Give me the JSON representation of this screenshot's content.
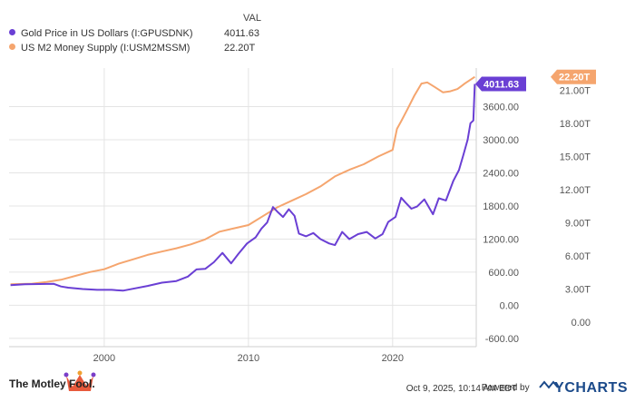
{
  "legend": {
    "value_header": "VAL",
    "items": [
      {
        "label": "Gold Price in US Dollars (I:GPUSDNK)",
        "value": "4011.63"
      },
      {
        "label": "US M2 Money Supply (I:USM2MSSM)",
        "value": "22.20T"
      }
    ]
  },
  "footer": {
    "brand": "The Motley Fool.",
    "timestamp": "Oct 9, 2025, 10:14 AM EDT",
    "powered_by": "Powered by",
    "provider": "YCHARTS"
  },
  "colors": {
    "gold": "#6a3fd4",
    "m2": "#f5a56e",
    "grid": "#e4e4e4",
    "axis_text": "#555555"
  },
  "chart_data": {
    "type": "line",
    "title": "",
    "xlabel": "",
    "ylabel": "",
    "x_ticks": [
      "2000",
      "2010",
      "2020"
    ],
    "xlim": [
      1993.4,
      2025.8
    ],
    "left_axis": {
      "ticks": [
        "-600.00",
        "0.00",
        "600.00",
        "1200.00",
        "1800.00",
        "2400.00",
        "3000.00",
        "3600.00"
      ],
      "ylim": [
        -750,
        4300
      ]
    },
    "right_axis": {
      "ticks": [
        "0.00",
        "3.00T",
        "6.00T",
        "9.00T",
        "12.00T",
        "15.00T",
        "18.00T",
        "21.00T"
      ],
      "ylim": [
        -2.2,
        23.0
      ]
    },
    "grid": true,
    "legend_position": "top-left",
    "series": [
      {
        "name": "Gold Price in US Dollars (I:GPUSDNK)",
        "axis": "left",
        "end_label": "4011.63",
        "points": [
          [
            1993.5,
            365
          ],
          [
            1994.5,
            380
          ],
          [
            1995.5,
            385
          ],
          [
            1996.5,
            388
          ],
          [
            1997.0,
            340
          ],
          [
            1997.5,
            320
          ],
          [
            1998.5,
            295
          ],
          [
            1999.5,
            280
          ],
          [
            2000.5,
            280
          ],
          [
            2001.3,
            265
          ],
          [
            2002.0,
            300
          ],
          [
            2003.0,
            350
          ],
          [
            2004.0,
            410
          ],
          [
            2005.0,
            440
          ],
          [
            2005.8,
            520
          ],
          [
            2006.4,
            650
          ],
          [
            2007.0,
            660
          ],
          [
            2007.6,
            780
          ],
          [
            2008.2,
            950
          ],
          [
            2008.8,
            760
          ],
          [
            2009.3,
            930
          ],
          [
            2009.9,
            1120
          ],
          [
            2010.5,
            1230
          ],
          [
            2010.9,
            1390
          ],
          [
            2011.3,
            1500
          ],
          [
            2011.7,
            1780
          ],
          [
            2012.0,
            1700
          ],
          [
            2012.4,
            1600
          ],
          [
            2012.8,
            1740
          ],
          [
            2013.2,
            1620
          ],
          [
            2013.5,
            1300
          ],
          [
            2014.0,
            1250
          ],
          [
            2014.5,
            1310
          ],
          [
            2015.0,
            1200
          ],
          [
            2015.6,
            1120
          ],
          [
            2016.0,
            1090
          ],
          [
            2016.5,
            1330
          ],
          [
            2017.0,
            1200
          ],
          [
            2017.6,
            1290
          ],
          [
            2018.2,
            1330
          ],
          [
            2018.8,
            1210
          ],
          [
            2019.3,
            1290
          ],
          [
            2019.7,
            1510
          ],
          [
            2020.2,
            1600
          ],
          [
            2020.6,
            1950
          ],
          [
            2020.9,
            1860
          ],
          [
            2021.3,
            1750
          ],
          [
            2021.7,
            1790
          ],
          [
            2022.2,
            1920
          ],
          [
            2022.8,
            1650
          ],
          [
            2023.2,
            1940
          ],
          [
            2023.7,
            1900
          ],
          [
            2024.2,
            2250
          ],
          [
            2024.6,
            2450
          ],
          [
            2024.9,
            2720
          ],
          [
            2025.2,
            3000
          ],
          [
            2025.4,
            3300
          ],
          [
            2025.6,
            3350
          ],
          [
            2025.7,
            4011.63
          ]
        ]
      },
      {
        "name": "US M2 Money Supply (I:USM2MSSM)",
        "axis": "right",
        "end_label": "22.20T",
        "points": [
          [
            1993.5,
            3.45
          ],
          [
            1995.0,
            3.5
          ],
          [
            1996.0,
            3.65
          ],
          [
            1997.0,
            3.85
          ],
          [
            1998.0,
            4.2
          ],
          [
            1999.0,
            4.55
          ],
          [
            2000.0,
            4.8
          ],
          [
            2001.0,
            5.3
          ],
          [
            2002.0,
            5.7
          ],
          [
            2003.0,
            6.1
          ],
          [
            2004.0,
            6.4
          ],
          [
            2005.0,
            6.7
          ],
          [
            2006.0,
            7.05
          ],
          [
            2007.0,
            7.5
          ],
          [
            2008.0,
            8.2
          ],
          [
            2009.0,
            8.5
          ],
          [
            2010.0,
            8.8
          ],
          [
            2011.0,
            9.6
          ],
          [
            2012.0,
            10.4
          ],
          [
            2013.0,
            11.0
          ],
          [
            2014.0,
            11.6
          ],
          [
            2015.0,
            12.3
          ],
          [
            2016.0,
            13.2
          ],
          [
            2017.0,
            13.8
          ],
          [
            2018.0,
            14.3
          ],
          [
            2019.0,
            15.0
          ],
          [
            2020.0,
            15.6
          ],
          [
            2020.3,
            17.5
          ],
          [
            2020.6,
            18.2
          ],
          [
            2021.0,
            19.2
          ],
          [
            2021.5,
            20.5
          ],
          [
            2022.0,
            21.6
          ],
          [
            2022.4,
            21.7
          ],
          [
            2022.9,
            21.3
          ],
          [
            2023.5,
            20.8
          ],
          [
            2024.0,
            20.9
          ],
          [
            2024.5,
            21.1
          ],
          [
            2025.0,
            21.6
          ],
          [
            2025.7,
            22.2
          ]
        ]
      }
    ]
  }
}
